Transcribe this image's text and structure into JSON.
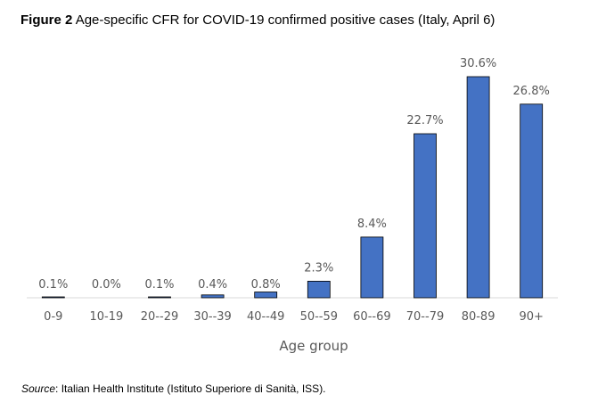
{
  "figure": {
    "label": "Figure 2",
    "caption": "Age-specific CFR for COVID-19 confirmed positive cases (Italy, April 6)"
  },
  "source": {
    "label": "Source",
    "text": ": Italian Health Institute (Istituto Superiore di Sanità, ISS)."
  },
  "chart_data": {
    "type": "bar",
    "title": "Figure 2 Age-specific CFR for COVID-19 confirmed positive cases (Italy, April 6)",
    "xlabel": "Age group",
    "ylabel": "",
    "categories": [
      "0-9",
      "10-19",
      "20--29",
      "30--39",
      "40--49",
      "50--59",
      "60--69",
      "70--79",
      "80-89",
      "90+"
    ],
    "values": [
      0.1,
      0.0,
      0.1,
      0.4,
      0.8,
      2.3,
      8.4,
      22.7,
      30.6,
      26.8
    ],
    "data_labels": [
      "0.1%",
      "0.0%",
      "0.1%",
      "0.4%",
      "0.8%",
      "2.3%",
      "8.4%",
      "22.7%",
      "30.6%",
      "26.8%"
    ],
    "ylim": [
      0,
      30.6
    ],
    "grid": false,
    "legend": "none",
    "colors": {
      "bar": "#4472C4",
      "bar_edge": "#000000",
      "axis": "#D9D9D9",
      "text": "#595959"
    }
  }
}
